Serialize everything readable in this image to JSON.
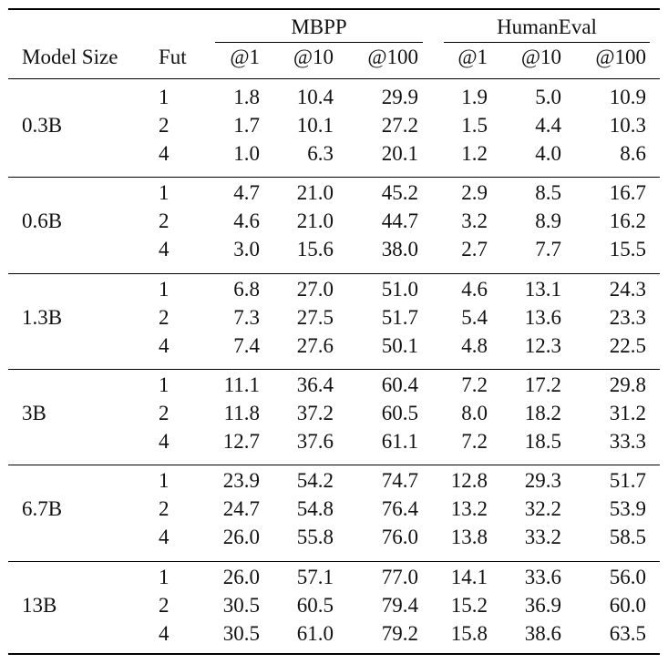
{
  "chart_data": {
    "type": "table",
    "metrics": [
      "MBPP",
      "HumanEval"
    ],
    "columns": [
      "Model Size",
      "Fut",
      "@1",
      "@10",
      "@100",
      "@1",
      "@10",
      "@100"
    ],
    "groups": [
      {
        "model": "0.3B",
        "rows": [
          {
            "fut": "1",
            "mbpp": [
              "1.8",
              "10.4",
              "29.9"
            ],
            "humaneval": [
              "1.9",
              "5.0",
              "10.9"
            ]
          },
          {
            "fut": "2",
            "mbpp": [
              "1.7",
              "10.1",
              "27.2"
            ],
            "humaneval": [
              "1.5",
              "4.4",
              "10.3"
            ]
          },
          {
            "fut": "4",
            "mbpp": [
              "1.0",
              "6.3",
              "20.1"
            ],
            "humaneval": [
              "1.2",
              "4.0",
              "8.6"
            ]
          }
        ]
      },
      {
        "model": "0.6B",
        "rows": [
          {
            "fut": "1",
            "mbpp": [
              "4.7",
              "21.0",
              "45.2"
            ],
            "humaneval": [
              "2.9",
              "8.5",
              "16.7"
            ]
          },
          {
            "fut": "2",
            "mbpp": [
              "4.6",
              "21.0",
              "44.7"
            ],
            "humaneval": [
              "3.2",
              "8.9",
              "16.2"
            ]
          },
          {
            "fut": "4",
            "mbpp": [
              "3.0",
              "15.6",
              "38.0"
            ],
            "humaneval": [
              "2.7",
              "7.7",
              "15.5"
            ]
          }
        ]
      },
      {
        "model": "1.3B",
        "rows": [
          {
            "fut": "1",
            "mbpp": [
              "6.8",
              "27.0",
              "51.0"
            ],
            "humaneval": [
              "4.6",
              "13.1",
              "24.3"
            ]
          },
          {
            "fut": "2",
            "mbpp": [
              "7.3",
              "27.5",
              "51.7"
            ],
            "humaneval": [
              "5.4",
              "13.6",
              "23.3"
            ]
          },
          {
            "fut": "4",
            "mbpp": [
              "7.4",
              "27.6",
              "50.1"
            ],
            "humaneval": [
              "4.8",
              "12.3",
              "22.5"
            ]
          }
        ]
      },
      {
        "model": "3B",
        "rows": [
          {
            "fut": "1",
            "mbpp": [
              "11.1",
              "36.4",
              "60.4"
            ],
            "humaneval": [
              "7.2",
              "17.2",
              "29.8"
            ]
          },
          {
            "fut": "2",
            "mbpp": [
              "11.8",
              "37.2",
              "60.5"
            ],
            "humaneval": [
              "8.0",
              "18.2",
              "31.2"
            ]
          },
          {
            "fut": "4",
            "mbpp": [
              "12.7",
              "37.6",
              "61.1"
            ],
            "humaneval": [
              "7.2",
              "18.5",
              "33.3"
            ]
          }
        ]
      },
      {
        "model": "6.7B",
        "rows": [
          {
            "fut": "1",
            "mbpp": [
              "23.9",
              "54.2",
              "74.7"
            ],
            "humaneval": [
              "12.8",
              "29.3",
              "51.7"
            ]
          },
          {
            "fut": "2",
            "mbpp": [
              "24.7",
              "54.8",
              "76.4"
            ],
            "humaneval": [
              "13.2",
              "32.2",
              "53.9"
            ]
          },
          {
            "fut": "4",
            "mbpp": [
              "26.0",
              "55.8",
              "76.0"
            ],
            "humaneval": [
              "13.8",
              "33.2",
              "58.5"
            ]
          }
        ]
      },
      {
        "model": "13B",
        "rows": [
          {
            "fut": "1",
            "mbpp": [
              "26.0",
              "57.1",
              "77.0"
            ],
            "humaneval": [
              "14.1",
              "33.6",
              "56.0"
            ]
          },
          {
            "fut": "2",
            "mbpp": [
              "30.5",
              "60.5",
              "79.4"
            ],
            "humaneval": [
              "15.2",
              "36.9",
              "60.0"
            ]
          },
          {
            "fut": "4",
            "mbpp": [
              "30.5",
              "61.0",
              "79.2"
            ],
            "humaneval": [
              "15.8",
              "38.6",
              "63.5"
            ]
          }
        ]
      }
    ]
  }
}
